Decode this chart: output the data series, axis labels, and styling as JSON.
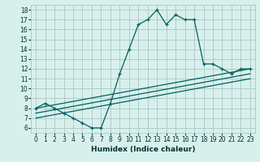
{
  "xlabel": "Humidex (Indice chaleur)",
  "bg_color": "#d8f0ec",
  "grid_color": "#b0ccc8",
  "line_color": "#006060",
  "xlim": [
    -0.5,
    23.5
  ],
  "ylim": [
    5.5,
    18.5
  ],
  "xticks": [
    0,
    1,
    2,
    3,
    4,
    5,
    6,
    7,
    8,
    9,
    10,
    11,
    12,
    13,
    14,
    15,
    16,
    17,
    18,
    19,
    20,
    21,
    22,
    23
  ],
  "yticks": [
    6,
    7,
    8,
    9,
    10,
    11,
    12,
    13,
    14,
    15,
    16,
    17,
    18
  ],
  "main_series": [
    8.0,
    8.5,
    8.0,
    7.5,
    7.0,
    6.5,
    6.0,
    6.0,
    8.5,
    11.5,
    14.0,
    16.5,
    17.0,
    18.0,
    16.5,
    17.5,
    17.0,
    17.0,
    12.5,
    12.5,
    12.0,
    11.5,
    12.0,
    12.0
  ],
  "linear1_start": 8.0,
  "linear1_end": 12.0,
  "linear2_start": 7.5,
  "linear2_end": 11.5,
  "linear3_start": 7.0,
  "linear3_end": 11.0,
  "tick_fontsize": 5.5,
  "xlabel_fontsize": 6.5
}
